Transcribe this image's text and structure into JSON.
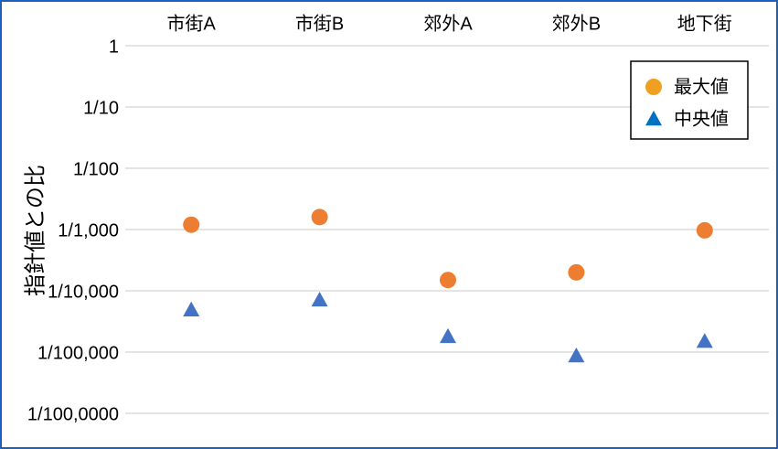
{
  "chart_data": {
    "type": "scatter",
    "y_label": "指針値との比",
    "categories": [
      "市街A",
      "市街B",
      "郊外A",
      "郊外B",
      "地下街"
    ],
    "series": [
      {
        "name": "最大値",
        "color": "#ED7D31",
        "legend_color": "#F0A020",
        "marker": "circle",
        "values": [
          0.0012,
          0.0016,
          0.00015,
          0.0002,
          0.00097
        ]
      },
      {
        "name": "中央値",
        "color": "#4472C4",
        "legend_color": "#0070C0",
        "marker": "triangle",
        "values": [
          4.9e-05,
          7.1e-05,
          1.8e-05,
          8.7e-06,
          1.5e-05
        ]
      }
    ],
    "log_scale": true,
    "ylim": [
      1e-06,
      1
    ],
    "yticks": [
      1,
      {
        "value": 0.1,
        "label": "1/10"
      },
      {
        "value": 0.01,
        "label": "1/100"
      },
      {
        "value": 0.001,
        "label": "1/1,000"
      },
      {
        "value": 0.0001,
        "label": "1/10,000"
      },
      {
        "value": 1e-05,
        "label": "1/100,000"
      },
      {
        "value": 1e-06,
        "label": "1/100,0000"
      }
    ],
    "grid": true,
    "legend_position": "top-right"
  }
}
